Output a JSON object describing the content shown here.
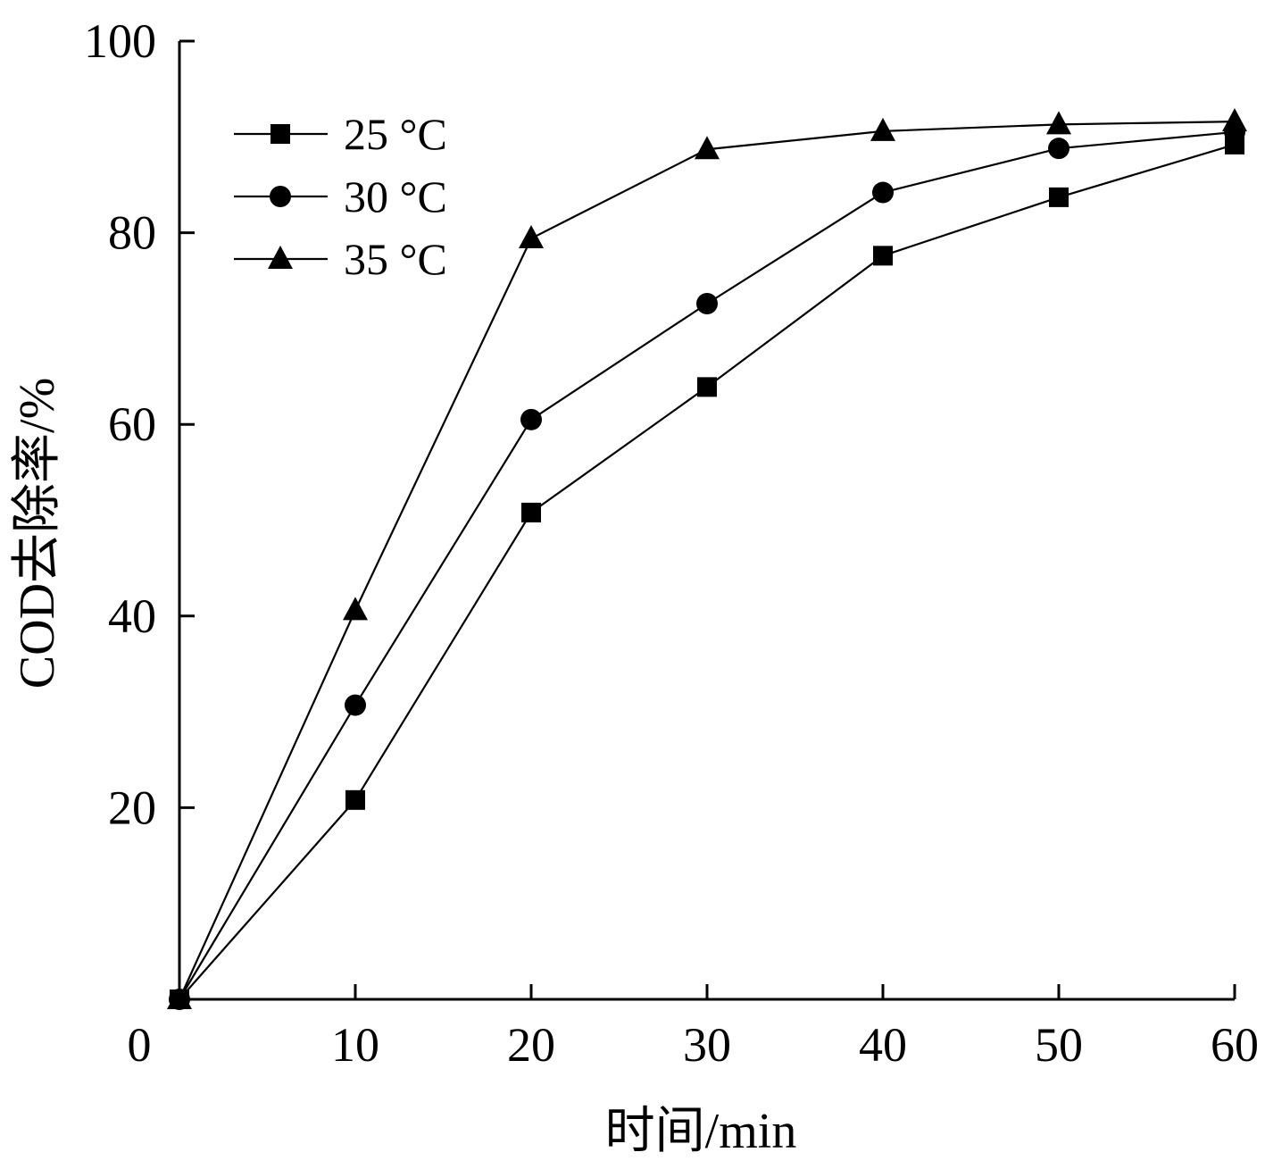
{
  "chart_data": {
    "type": "line",
    "xlabel": "时间/min",
    "ylabel": "COD去除率/%",
    "xlim": [
      0,
      60
    ],
    "ylim": [
      0,
      100
    ],
    "x_ticks": [
      10,
      20,
      30,
      40,
      50,
      60
    ],
    "y_ticks": [
      20,
      40,
      60,
      80,
      100
    ],
    "origin_label": "0",
    "grid": false,
    "legend_position": "top-left",
    "x": [
      0,
      10,
      20,
      30,
      40,
      50,
      60
    ],
    "series": [
      {
        "name": "25 °C",
        "marker": "square",
        "values": [
          0,
          20.8,
          50.8,
          63.9,
          77.6,
          83.7,
          89.2
        ]
      },
      {
        "name": "30 °C",
        "marker": "circle",
        "values": [
          0,
          30.7,
          60.5,
          72.6,
          84.2,
          88.8,
          90.5
        ]
      },
      {
        "name": "35 °C",
        "marker": "triangle",
        "values": [
          0,
          40.6,
          79.4,
          88.7,
          90.6,
          91.3,
          91.6
        ]
      }
    ]
  }
}
